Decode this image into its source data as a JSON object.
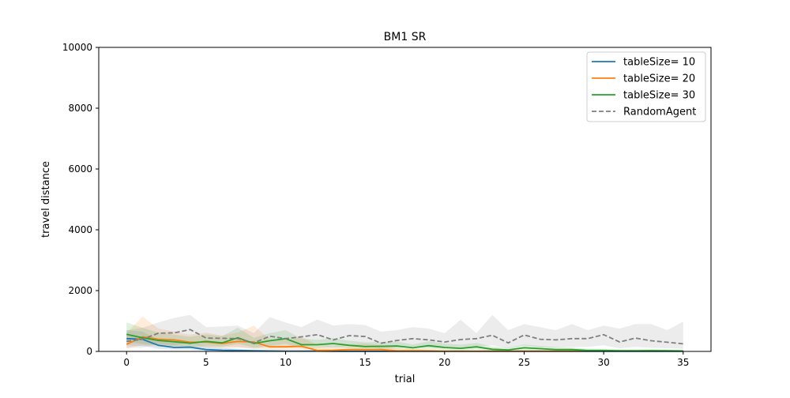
{
  "chart_data": {
    "type": "line",
    "title": "BM1  SR",
    "xlabel": "trial",
    "ylabel": "travel distance",
    "xlim": [
      -1.75,
      36.75
    ],
    "ylim": [
      0,
      10000
    ],
    "xticks": [
      0,
      5,
      10,
      15,
      20,
      25,
      30,
      35
    ],
    "yticks": [
      0,
      2000,
      4000,
      6000,
      8000,
      10000
    ],
    "grid": false,
    "legend": "top-right",
    "series": [
      {
        "name": "tableSize= 10",
        "color": "#1f77b4",
        "dash": "solid",
        "x": [
          0,
          1,
          2,
          3,
          4,
          5,
          6,
          7,
          8,
          9,
          10,
          11,
          12,
          13,
          14,
          15,
          16,
          17,
          18,
          19,
          20,
          21,
          22,
          23,
          24,
          25,
          26,
          27,
          28,
          29,
          30,
          31,
          32,
          33,
          34,
          35
        ],
        "values": [
          420,
          400,
          200,
          130,
          140,
          60,
          40,
          30,
          20,
          15,
          10,
          10,
          10,
          5,
          5,
          5,
          5,
          5,
          5,
          5,
          5,
          5,
          5,
          5,
          5,
          5,
          5,
          5,
          5,
          5,
          5,
          5,
          5,
          5,
          5,
          5
        ],
        "lower": [
          200,
          180,
          80,
          60,
          60,
          20,
          10,
          10,
          5,
          5,
          5,
          5,
          5,
          0,
          0,
          0,
          0,
          0,
          0,
          0,
          0,
          0,
          0,
          0,
          0,
          0,
          0,
          0,
          0,
          0,
          0,
          0,
          0,
          0,
          0,
          0
        ],
        "upper": [
          700,
          650,
          380,
          300,
          330,
          160,
          120,
          80,
          60,
          40,
          30,
          30,
          25,
          15,
          15,
          15,
          15,
          15,
          15,
          15,
          15,
          15,
          15,
          15,
          15,
          15,
          15,
          15,
          15,
          15,
          15,
          15,
          15,
          15,
          15,
          15
        ]
      },
      {
        "name": "tableSize= 20",
        "color": "#ff7f0e",
        "dash": "solid",
        "x": [
          0,
          1,
          2,
          3,
          4,
          5,
          6,
          7,
          8,
          9,
          10,
          11,
          12,
          13,
          14,
          15,
          16,
          17,
          18,
          19,
          20,
          21,
          22,
          23,
          24,
          25,
          26,
          27,
          28,
          29,
          30,
          31,
          32,
          33,
          34,
          35
        ],
        "values": [
          230,
          480,
          400,
          380,
          300,
          310,
          260,
          330,
          310,
          150,
          150,
          170,
          30,
          40,
          60,
          60,
          60,
          20,
          20,
          20,
          10,
          10,
          10,
          10,
          10,
          10,
          10,
          10,
          10,
          10,
          10,
          10,
          10,
          10,
          10,
          10
        ],
        "lower": [
          100,
          200,
          150,
          150,
          120,
          130,
          100,
          120,
          100,
          50,
          50,
          60,
          5,
          10,
          20,
          20,
          20,
          5,
          5,
          5,
          0,
          0,
          0,
          0,
          0,
          0,
          0,
          0,
          0,
          0,
          0,
          0,
          0,
          0,
          0,
          0
        ],
        "upper": [
          600,
          1150,
          750,
          650,
          550,
          620,
          520,
          620,
          850,
          400,
          380,
          480,
          200,
          150,
          220,
          260,
          200,
          100,
          80,
          60,
          40,
          30,
          30,
          30,
          30,
          30,
          30,
          30,
          30,
          30,
          30,
          30,
          30,
          30,
          30,
          30
        ]
      },
      {
        "name": "tableSize= 30",
        "color": "#2ca02c",
        "dash": "solid",
        "x": [
          0,
          1,
          2,
          3,
          4,
          5,
          6,
          7,
          8,
          9,
          10,
          11,
          12,
          13,
          14,
          15,
          16,
          17,
          18,
          19,
          20,
          21,
          22,
          23,
          24,
          25,
          26,
          27,
          28,
          29,
          30,
          31,
          32,
          33,
          34,
          35
        ],
        "values": [
          560,
          450,
          360,
          320,
          270,
          330,
          280,
          450,
          260,
          350,
          420,
          220,
          220,
          260,
          200,
          160,
          170,
          180,
          120,
          190,
          130,
          100,
          150,
          70,
          50,
          120,
          90,
          60,
          60,
          30,
          30,
          20,
          20,
          25,
          20,
          15
        ],
        "lower": [
          300,
          250,
          200,
          180,
          150,
          180,
          150,
          250,
          130,
          180,
          250,
          100,
          100,
          140,
          100,
          60,
          80,
          80,
          50,
          80,
          50,
          30,
          60,
          20,
          10,
          40,
          30,
          10,
          10,
          5,
          5,
          0,
          0,
          5,
          0,
          0
        ],
        "upper": [
          950,
          780,
          620,
          550,
          480,
          560,
          500,
          780,
          450,
          600,
          700,
          420,
          380,
          440,
          350,
          300,
          310,
          330,
          230,
          330,
          260,
          220,
          280,
          160,
          120,
          230,
          180,
          140,
          130,
          90,
          80,
          60,
          60,
          70,
          60,
          50
        ]
      },
      {
        "name": "RandomAgent",
        "color": "#7f7f7f",
        "dash": "dashed",
        "x": [
          0,
          1,
          2,
          3,
          4,
          5,
          6,
          7,
          8,
          9,
          10,
          11,
          12,
          13,
          14,
          15,
          16,
          17,
          18,
          19,
          20,
          21,
          22,
          23,
          24,
          25,
          26,
          27,
          28,
          29,
          30,
          31,
          32,
          33,
          34,
          35
        ],
        "values": [
          330,
          400,
          600,
          610,
          720,
          440,
          430,
          420,
          280,
          500,
          420,
          480,
          550,
          380,
          520,
          490,
          270,
          360,
          420,
          380,
          310,
          390,
          420,
          530,
          280,
          540,
          400,
          380,
          420,
          420,
          550,
          310,
          440,
          350,
          300,
          250
        ],
        "lower": [
          120,
          120,
          250,
          200,
          300,
          150,
          150,
          150,
          80,
          150,
          150,
          180,
          200,
          120,
          200,
          200,
          80,
          120,
          150,
          130,
          100,
          130,
          150,
          200,
          100,
          200,
          130,
          130,
          150,
          150,
          200,
          100,
          150,
          120,
          100,
          80
        ],
        "upper": [
          700,
          780,
          950,
          1100,
          1200,
          800,
          820,
          850,
          600,
          1130,
          950,
          800,
          1050,
          850,
          900,
          870,
          650,
          700,
          800,
          750,
          600,
          1040,
          600,
          1200,
          700,
          900,
          800,
          700,
          900,
          700,
          850,
          750,
          900,
          900,
          700,
          980
        ]
      }
    ]
  }
}
